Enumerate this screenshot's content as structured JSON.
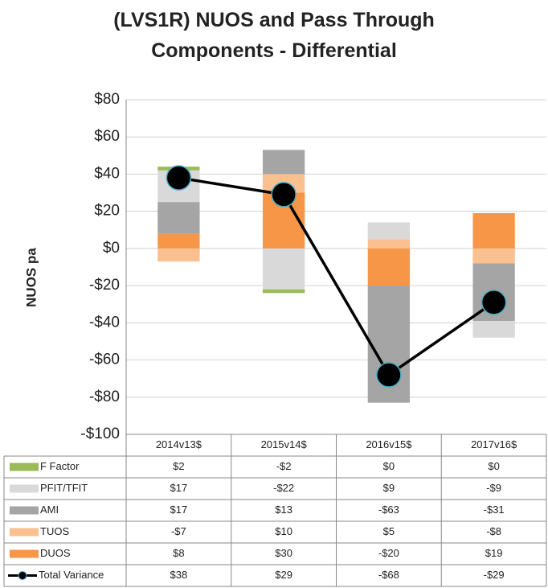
{
  "chart_data": {
    "type": "bar",
    "stacked": true,
    "title": "(LVS1R) NUOS and Pass Through Components - Differential",
    "y_label": "NUOS pa",
    "categories": [
      "2014v13$",
      "2015v14$",
      "2016v15$",
      "2017v16$"
    ],
    "series": [
      {
        "name": "F Factor",
        "color": "#9bbb59",
        "values": [
          2,
          -2,
          0,
          0
        ],
        "value_labels": [
          "$2",
          "-$2",
          "$0",
          "$0"
        ]
      },
      {
        "name": "PFIT/TFIT",
        "color": "#d9d9d9",
        "values": [
          17,
          -22,
          9,
          -9
        ],
        "value_labels": [
          "$17",
          "-$22",
          "$9",
          "-$9"
        ]
      },
      {
        "name": "AMI",
        "color": "#a5a5a5",
        "values": [
          17,
          13,
          -63,
          -31
        ],
        "value_labels": [
          "$17",
          "$13",
          "-$63",
          "-$31"
        ]
      },
      {
        "name": "TUOS",
        "color": "#fac090",
        "values": [
          -7,
          10,
          5,
          -8
        ],
        "value_labels": [
          "-$7",
          "$10",
          "$5",
          "-$8"
        ]
      },
      {
        "name": "DUOS",
        "color": "#f79646",
        "values": [
          8,
          30,
          -20,
          19
        ],
        "value_labels": [
          "$8",
          "$30",
          "-$20",
          "$19"
        ]
      },
      {
        "name": "Total Variance",
        "type": "line",
        "color": "#000000",
        "marker_edge": "#4bacc6",
        "values": [
          38,
          29,
          -68,
          -29
        ],
        "value_labels": [
          "$38",
          "$29",
          "-$68",
          "-$29"
        ]
      }
    ],
    "ylim": [
      -100,
      80
    ],
    "yticks": [
      {
        "value": -100,
        "label": "-$100"
      },
      {
        "value": -80,
        "label": "-$80"
      },
      {
        "value": -60,
        "label": "-$60"
      },
      {
        "value": -40,
        "label": "-$40"
      },
      {
        "value": -20,
        "label": "-$20"
      },
      {
        "value": 0,
        "label": "$0"
      },
      {
        "value": 20,
        "label": "$20"
      },
      {
        "value": 40,
        "label": "$40"
      },
      {
        "value": 60,
        "label": "$60"
      },
      {
        "value": 80,
        "label": "$80"
      }
    ],
    "grid": true,
    "legend": "table"
  }
}
